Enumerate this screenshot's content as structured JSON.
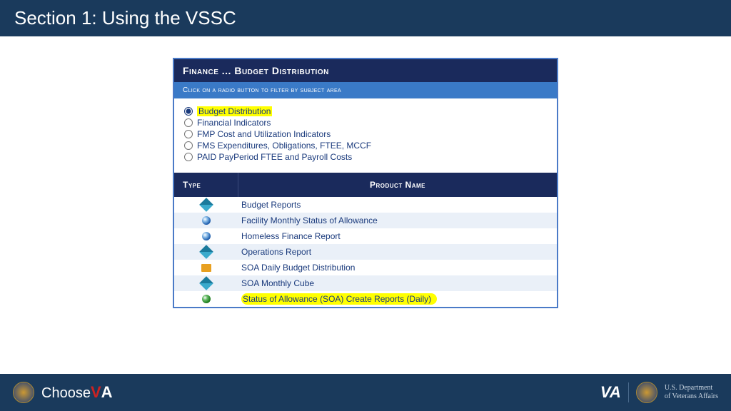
{
  "header": {
    "title": "Section 1: Using the VSSC"
  },
  "panel": {
    "title": "Finance ... Budget Distribution",
    "subtitle": "Click on a radio button to filter by subject area",
    "filters": [
      {
        "label": "Budget Distribution",
        "checked": true,
        "highlight": true
      },
      {
        "label": "Financial Indicators",
        "checked": false,
        "highlight": false
      },
      {
        "label": "FMP Cost and Utilization Indicators",
        "checked": false,
        "highlight": false
      },
      {
        "label": "FMS Expenditures, Obligations, FTEE, MCCF",
        "checked": false,
        "highlight": false
      },
      {
        "label": "PAID PayPeriod FTEE and Payroll Costs",
        "checked": false,
        "highlight": false
      }
    ],
    "columns": {
      "type": "Type",
      "name": "Product Name"
    },
    "products": [
      {
        "icon": "diamond",
        "label": "Budget Reports",
        "highlight": false
      },
      {
        "icon": "blue-circle",
        "label": "Facility Monthly Status of Allowance",
        "highlight": false
      },
      {
        "icon": "blue-circle",
        "label": "Homeless Finance Report",
        "highlight": false
      },
      {
        "icon": "diamond",
        "label": "Operations Report",
        "highlight": false
      },
      {
        "icon": "folder",
        "label": "SOA Daily Budget Distribution",
        "highlight": false
      },
      {
        "icon": "diamond",
        "label": "SOA Monthly Cube",
        "highlight": false
      },
      {
        "icon": "green-circle",
        "label": "Status of Allowance (SOA) Create Reports (Daily)",
        "highlight": true
      }
    ],
    "colors": {
      "header_bg": "#1a3a5c",
      "panel_title_bg": "#1a2a5c",
      "panel_sub_bg": "#3a7ac7",
      "panel_border": "#4a7ac7",
      "text_link": "#1a3a7c",
      "row_alt": "#eaf0f8",
      "highlight": "#ffff00"
    },
    "icon_styles": {
      "diamond": {
        "fill_left": "#1a7a9c",
        "fill_right": "#3aaacc"
      },
      "blue-circle": {
        "fill": "#1a5aaa",
        "ring": "#88bbe8"
      },
      "green-circle": {
        "fill": "#1a7a1a",
        "ring": "#66bb66"
      },
      "folder": {
        "fill": "#e8a020"
      }
    }
  },
  "footer": {
    "choose": "Choose",
    "va_bold": "VA",
    "dept_line1": "U.S. Department",
    "dept_line2": "of Veterans Affairs"
  }
}
